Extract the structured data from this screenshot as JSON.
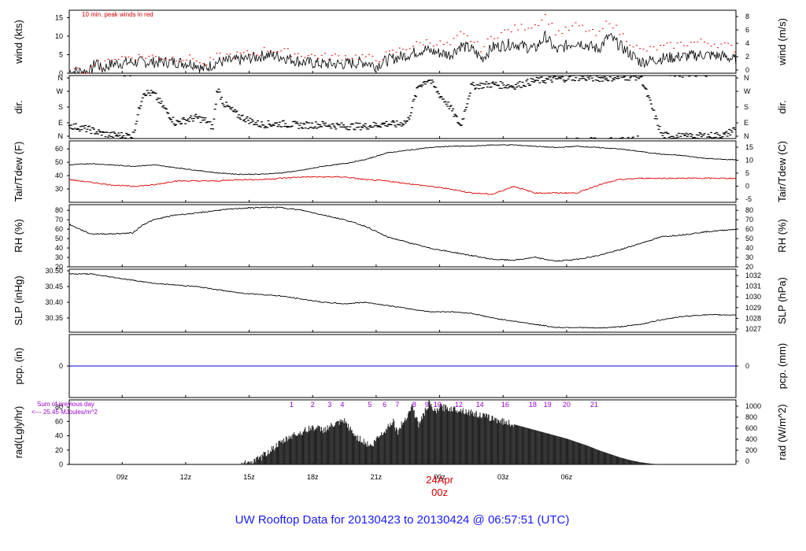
{
  "title": "UW Rooftop Data for 20130423  to  20130424 @ 06:57:51  (UTC)",
  "notes": {
    "peak_winds": "10 min. peak winds in red",
    "sum_line1": "Sum of previous day",
    "sum_line2": "<--- 25.45 MJoules/m^2"
  },
  "colors": {
    "series": "#000000",
    "dewpoint": "#e00000",
    "peak": "#e00000",
    "precip": "#0000cc",
    "title": "#1a1aff",
    "hours": "#9900cc"
  },
  "chart_data": [
    {
      "type": "line",
      "name": "wind",
      "ylabel": "wind (kts)",
      "ylabel_right": "wind (m/s)",
      "ylim": [
        0,
        17
      ],
      "yticks": [
        0,
        5,
        10,
        15
      ],
      "yticks_right": [
        "0",
        "2",
        "4",
        "6",
        "8"
      ],
      "x_hours": [
        0.0,
        1.0,
        1.3,
        1.5,
        2.0,
        3.0,
        4.0,
        5.0,
        6.0,
        6.3,
        7.0,
        8.0,
        9.0,
        9.3,
        10.0,
        11.0,
        12.0,
        13.0,
        14.0,
        14.5,
        15.0,
        16.0,
        16.8,
        17.0,
        18.0,
        18.5,
        19.0,
        19.5,
        20.0,
        21.0,
        22.0,
        22.5,
        23.0,
        23.5,
        24.0,
        25.0,
        25.5,
        26.0,
        27.0,
        28.0,
        29.0,
        30.0,
        31.0,
        31.5
      ],
      "series": [
        {
          "name": "wind speed",
          "values": [
            0.5,
            0.5,
            3.5,
            1.0,
            2.5,
            3.0,
            3.0,
            3.0,
            2.5,
            1.0,
            3.0,
            3.5,
            4.5,
            5.0,
            4.5,
            3.0,
            2.5,
            2.5,
            3.0,
            2.0,
            3.5,
            5.0,
            6.5,
            6.0,
            5.0,
            7.5,
            6.5,
            4.0,
            7.0,
            8.0,
            6.5,
            10.0,
            6.0,
            7.5,
            8.5,
            6.5,
            10.0,
            7.5,
            3.0,
            4.0,
            4.5,
            5.0,
            4.5,
            3.5
          ]
        },
        {
          "name": "peak",
          "values": [
            0.5,
            0.5,
            4.5,
            1.5,
            4.0,
            4.5,
            4.5,
            4.0,
            4.0,
            2.0,
            4.5,
            5.0,
            5.5,
            6.5,
            6.0,
            5.0,
            4.5,
            4.5,
            4.5,
            3.5,
            5.0,
            7.0,
            8.5,
            8.5,
            7.5,
            10.5,
            9.0,
            6.5,
            10.0,
            12.0,
            13.0,
            15.5,
            11.0,
            11.5,
            13.0,
            10.0,
            14.5,
            11.0,
            6.0,
            7.0,
            8.0,
            8.5,
            7.5,
            6.5
          ]
        }
      ]
    },
    {
      "type": "scatter",
      "name": "direction",
      "ylabel": "dir.",
      "ylabel_right": "dir.",
      "yticks": [
        "N",
        "E",
        "S",
        "W",
        "N"
      ],
      "ylim": [
        0,
        360
      ],
      "x_hours": [
        0.0,
        1.0,
        1.5,
        2.0,
        3.0,
        3.5,
        4.0,
        5.0,
        6.0,
        6.5,
        6.8,
        7.0,
        7.3,
        8.0,
        9.0,
        10.0,
        11.0,
        12.0,
        13.0,
        14.0,
        15.0,
        15.5,
        16.0,
        16.5,
        17.0,
        17.5,
        18.0,
        18.5,
        19.0,
        20.0,
        21.0,
        22.0,
        23.0,
        24.0,
        25.0,
        26.0,
        27.0,
        28.0,
        29.0,
        30.0,
        31.0,
        31.5
      ],
      "series": [
        {
          "name": "wind direction",
          "values": [
            75,
            50,
            30,
            20,
            15,
            265,
            255,
            90,
            120,
            100,
            60,
            290,
            200,
            130,
            80,
            85,
            75,
            80,
            70,
            70,
            85,
            80,
            100,
            300,
            340,
            250,
            180,
            70,
            300,
            310,
            300,
            330,
            340,
            350,
            345,
            350,
            355,
            20,
            10,
            15,
            20,
            60
          ]
        }
      ]
    },
    {
      "type": "line",
      "name": "temperature",
      "ylabel": "Tair/Tdew (F)",
      "ylabel_right": "Tair/Tdew (C)",
      "ylim": [
        20,
        66
      ],
      "yticks": [
        30,
        40,
        50,
        60
      ],
      "yticks_right": [
        "-5",
        "0",
        "5",
        "10",
        "15"
      ],
      "x_hours": [
        0,
        1,
        2,
        3,
        4,
        5,
        6,
        7,
        8,
        9,
        10,
        11,
        12,
        13,
        14,
        15,
        16,
        17,
        18,
        19,
        20,
        21,
        22,
        23,
        24,
        25,
        26,
        27,
        28,
        29,
        30,
        31,
        31.5
      ],
      "series": [
        {
          "name": "Tair",
          "values": [
            48,
            49,
            48,
            47,
            48,
            46,
            44,
            42,
            41,
            41,
            42,
            44,
            47,
            49,
            52,
            57,
            59,
            61,
            62,
            62,
            63,
            63,
            62,
            61,
            62,
            61,
            60,
            58,
            56,
            55,
            53,
            52,
            52
          ]
        },
        {
          "name": "Tdew",
          "values": [
            37,
            35,
            33,
            32,
            33,
            36,
            36,
            36,
            37,
            37,
            38,
            39,
            39,
            39,
            37,
            36,
            34,
            32,
            30,
            27,
            26,
            32,
            27,
            27,
            27,
            33,
            37,
            38,
            38,
            38,
            38,
            38,
            38
          ]
        }
      ]
    },
    {
      "type": "line",
      "name": "relative humidity",
      "ylabel": "RH (%)",
      "ylabel_right": "RH (%)",
      "ylim": [
        20,
        86
      ],
      "yticks": [
        20,
        30,
        40,
        50,
        60,
        70,
        80
      ],
      "yticks_right": [
        "20",
        "30",
        "40",
        "50",
        "60",
        "70",
        "80"
      ],
      "x_hours": [
        0,
        1,
        2,
        3,
        3.5,
        4,
        5,
        6,
        7,
        8,
        9,
        10,
        11,
        12,
        13,
        14,
        15,
        16,
        17,
        18,
        19,
        20,
        21,
        22,
        23,
        24,
        25,
        26,
        27,
        28,
        29,
        30,
        31,
        31.5
      ],
      "series": [
        {
          "name": "RH",
          "values": [
            65,
            55,
            55,
            56,
            65,
            70,
            75,
            77,
            80,
            82,
            83,
            83,
            80,
            75,
            70,
            63,
            52,
            46,
            40,
            36,
            32,
            28,
            27,
            30,
            26,
            28,
            32,
            38,
            45,
            52,
            54,
            57,
            59,
            60
          ]
        }
      ]
    },
    {
      "type": "line",
      "name": "sea level pressure",
      "ylabel": "SLP (inHg)",
      "ylabel_right": "SLP (hPa)",
      "ylim": [
        30.305,
        30.505
      ],
      "yticks": [
        30.35,
        30.4,
        30.45,
        30.5
      ],
      "ytick_labels": [
        "30.35",
        "30.40",
        "30.45",
        "30.50"
      ],
      "yticks_right": [
        "1027",
        "1028",
        "1029",
        "1030",
        "1031",
        "1032"
      ],
      "x_hours": [
        0,
        1,
        2,
        3,
        4,
        5,
        6,
        7,
        8,
        9,
        10,
        11,
        12,
        13,
        14,
        15,
        16,
        17,
        18,
        19,
        20,
        21,
        22,
        23,
        24,
        25,
        26,
        27,
        28,
        29,
        30,
        31,
        31.5
      ],
      "series": [
        {
          "name": "SLP",
          "values": [
            30.49,
            30.49,
            30.48,
            30.47,
            30.46,
            30.455,
            30.45,
            30.44,
            30.43,
            30.425,
            30.42,
            30.41,
            30.4,
            30.395,
            30.4,
            30.39,
            30.38,
            30.37,
            30.37,
            30.365,
            30.35,
            30.34,
            30.33,
            30.32,
            30.32,
            30.318,
            30.322,
            30.33,
            30.345,
            30.355,
            30.36,
            30.36,
            30.36
          ]
        }
      ]
    },
    {
      "type": "line",
      "name": "precipitation",
      "ylabel": "pcp. (in)",
      "ylabel_right": "pcp. (mm)",
      "yticks": [
        0
      ],
      "yticks_right": [
        "0"
      ],
      "ylim": [
        -0.1,
        0.1
      ],
      "x_hours": [
        0,
        31.5
      ],
      "series": [
        {
          "name": "pcp",
          "values": [
            0,
            0
          ]
        }
      ]
    },
    {
      "type": "area",
      "name": "radiation",
      "ylabel": "rad(Lgly/hr)",
      "ylabel_right": "rad (W/m^2)",
      "ylim": [
        0,
        90
      ],
      "yticks": [
        0,
        20,
        40,
        60,
        80
      ],
      "yticks_right": [
        "0",
        "200",
        "400",
        "600",
        "800",
        "1000"
      ],
      "hour_marks": [
        "1",
        "2",
        "3",
        "4",
        "5",
        "6",
        "7",
        "8",
        "9",
        "10",
        "12",
        "14",
        "16",
        "18",
        "19",
        "20",
        "21"
      ],
      "hour_mark_positions": [
        10.5,
        11.5,
        12.3,
        12.9,
        14.2,
        14.9,
        15.5,
        16.3,
        16.9,
        17.4,
        18.4,
        19.4,
        20.6,
        21.9,
        22.6,
        23.5,
        24.8
      ],
      "x_hours": [
        8.0,
        8.5,
        9.0,
        9.5,
        10.0,
        10.5,
        11.0,
        11.5,
        12.0,
        12.5,
        13.0,
        13.5,
        14.0,
        14.3,
        14.5,
        15.0,
        15.3,
        15.5,
        16.0,
        16.2,
        16.5,
        17.0,
        17.3,
        17.5,
        18.0,
        18.5,
        19.0,
        19.5,
        20.0,
        20.5,
        21.0,
        21.5,
        22.0,
        22.5,
        23.0,
        23.5,
        24.0,
        24.5,
        25.0,
        25.5,
        26.0,
        26.5,
        27.0,
        27.5,
        28.0
      ],
      "series": [
        {
          "name": "solar radiation",
          "values": [
            0,
            2,
            8,
            20,
            30,
            40,
            45,
            52,
            48,
            55,
            60,
            40,
            30,
            25,
            35,
            50,
            62,
            45,
            70,
            82,
            55,
            85,
            72,
            80,
            78,
            76,
            72,
            68,
            64,
            60,
            56,
            52,
            48,
            44,
            40,
            36,
            31,
            26,
            20,
            15,
            10,
            6,
            3,
            1,
            0
          ]
        }
      ]
    }
  ],
  "x_axis": {
    "start_hour": 6.5,
    "end_hour": 38.0,
    "ticks": [
      {
        "hour": 9,
        "label": "09z"
      },
      {
        "hour": 12,
        "label": "12z"
      },
      {
        "hour": 15,
        "label": "15z"
      },
      {
        "hour": 18,
        "label": "18z"
      },
      {
        "hour": 21,
        "label": "21z"
      },
      {
        "hour": 24,
        "label": "00z"
      },
      {
        "hour": 27,
        "label": "03z"
      },
      {
        "hour": 30,
        "label": "06z"
      }
    ],
    "date_label": "24Apr",
    "date_sublabel": "00z"
  }
}
